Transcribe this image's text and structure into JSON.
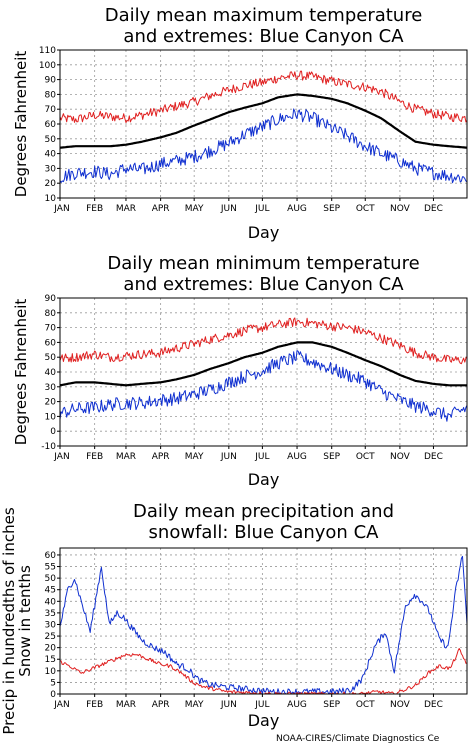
{
  "credit": "NOAA-CIRES/Climate Diagnostics Ce",
  "colors": {
    "extreme_high": "#e02020",
    "extreme_low": "#1030d0",
    "mean": "#000000"
  },
  "chart_data": [
    {
      "type": "line",
      "title": [
        "Daily mean maximum temperature",
        "and extremes: Blue Canyon CA"
      ],
      "xlabel": "Day",
      "ylabel": [
        "Degrees Fahrenheit"
      ],
      "months": [
        "JAN",
        "FEB",
        "MAR",
        "APR",
        "MAY",
        "JUN",
        "JUL",
        "AUG",
        "SEP",
        "OCT",
        "NOV",
        "DEC"
      ],
      "ylim": [
        10,
        110
      ],
      "yticks": [
        10,
        20,
        30,
        40,
        50,
        60,
        70,
        80,
        90,
        100,
        110
      ],
      "grid": true,
      "x_day_of_year": [
        1,
        15,
        32,
        46,
        60,
        74,
        91,
        105,
        121,
        135,
        152,
        166,
        182,
        196,
        213,
        227,
        244,
        258,
        274,
        288,
        305,
        319,
        335,
        349,
        365
      ],
      "series": [
        {
          "role": "high",
          "values": [
            64,
            63,
            66,
            65,
            64,
            66,
            69,
            72,
            75,
            79,
            83,
            86,
            88,
            91,
            93,
            92,
            89,
            87,
            85,
            82,
            75,
            70,
            67,
            65,
            64
          ]
        },
        {
          "role": "mean",
          "values": [
            44,
            45,
            45,
            45,
            46,
            48,
            51,
            54,
            59,
            63,
            68,
            71,
            74,
            78,
            80,
            79,
            77,
            74,
            69,
            64,
            55,
            48,
            46,
            45,
            44
          ]
        },
        {
          "role": "low",
          "values": [
            24,
            27,
            28,
            26,
            30,
            29,
            33,
            35,
            38,
            42,
            47,
            53,
            58,
            63,
            67,
            64,
            57,
            52,
            45,
            40,
            35,
            30,
            27,
            25,
            23
          ]
        }
      ]
    },
    {
      "type": "line",
      "title": [
        "Daily mean minimum temperature",
        "and extremes: Blue Canyon CA"
      ],
      "xlabel": "Day",
      "ylabel": [
        "Degrees Fahrenheit"
      ],
      "months": [
        "JAN",
        "FEB",
        "MAR",
        "APR",
        "MAY",
        "JUN",
        "JUL",
        "AUG",
        "SEP",
        "OCT",
        "NOV",
        "DEC"
      ],
      "ylim": [
        -10,
        90
      ],
      "yticks": [
        -10,
        0,
        10,
        20,
        30,
        40,
        50,
        60,
        70,
        80,
        90
      ],
      "grid": true,
      "x_day_of_year": [
        1,
        15,
        32,
        46,
        60,
        74,
        91,
        105,
        121,
        135,
        152,
        166,
        182,
        196,
        213,
        227,
        244,
        258,
        274,
        288,
        305,
        319,
        335,
        349,
        365
      ],
      "series": [
        {
          "role": "high",
          "values": [
            49,
            50,
            52,
            50,
            51,
            52,
            53,
            56,
            59,
            62,
            65,
            68,
            70,
            72,
            74,
            73,
            71,
            70,
            67,
            63,
            58,
            53,
            50,
            48,
            48
          ]
        },
        {
          "role": "mean",
          "values": [
            31,
            33,
            33,
            32,
            31,
            32,
            33,
            35,
            38,
            42,
            46,
            50,
            53,
            57,
            60,
            60,
            57,
            53,
            48,
            44,
            38,
            34,
            32,
            31,
            31
          ]
        },
        {
          "role": "low",
          "values": [
            12,
            15,
            16,
            18,
            19,
            19,
            21,
            22,
            25,
            28,
            33,
            37,
            41,
            46,
            50,
            47,
            42,
            38,
            34,
            27,
            21,
            17,
            14,
            10,
            16
          ]
        }
      ]
    },
    {
      "type": "line",
      "title": [
        "Daily mean precipitation and",
        "snowfall: Blue Canyon CA"
      ],
      "xlabel": "Day",
      "ylabel": [
        "Precip in hundredths of inches",
        "Snow in tenths"
      ],
      "months": [
        "JAN",
        "FEB",
        "MAR",
        "APR",
        "MAY",
        "JUN",
        "JUL",
        "AUG",
        "SEP",
        "OCT",
        "NOV",
        "DEC"
      ],
      "ylim": [
        0,
        63
      ],
      "yticks": [
        0,
        5,
        10,
        15,
        20,
        25,
        30,
        35,
        40,
        45,
        50,
        55,
        60
      ],
      "grid": true,
      "series": [
        {
          "role": "precip",
          "x": [
            1,
            8,
            14,
            20,
            28,
            38,
            45,
            52,
            58,
            66,
            75,
            85,
            95,
            105,
            115,
            125,
            135,
            150,
            170,
            190,
            210,
            230,
            250,
            262,
            272,
            282,
            292,
            300,
            310,
            318,
            325,
            332,
            340,
            348,
            355,
            361,
            365
          ],
          "values": [
            29,
            45,
            50,
            40,
            27,
            55,
            30,
            35,
            33,
            28,
            23,
            20,
            18,
            13,
            11,
            6,
            4,
            3,
            2,
            1,
            1,
            1,
            1,
            2,
            7,
            20,
            27,
            10,
            38,
            43,
            40,
            35,
            24,
            20,
            45,
            60,
            30
          ]
        },
        {
          "role": "snow",
          "x": [
            1,
            10,
            20,
            30,
            40,
            50,
            60,
            70,
            80,
            90,
            100,
            110,
            120,
            130,
            140,
            150,
            200,
            270,
            285,
            300,
            310,
            320,
            330,
            340,
            350,
            358,
            365
          ],
          "values": [
            14,
            12,
            9,
            11,
            13,
            15,
            17,
            17,
            15,
            13,
            12,
            9,
            5,
            3,
            2,
            1,
            0,
            0,
            1,
            0,
            2,
            4,
            9,
            12,
            11,
            19,
            13
          ]
        }
      ]
    }
  ]
}
